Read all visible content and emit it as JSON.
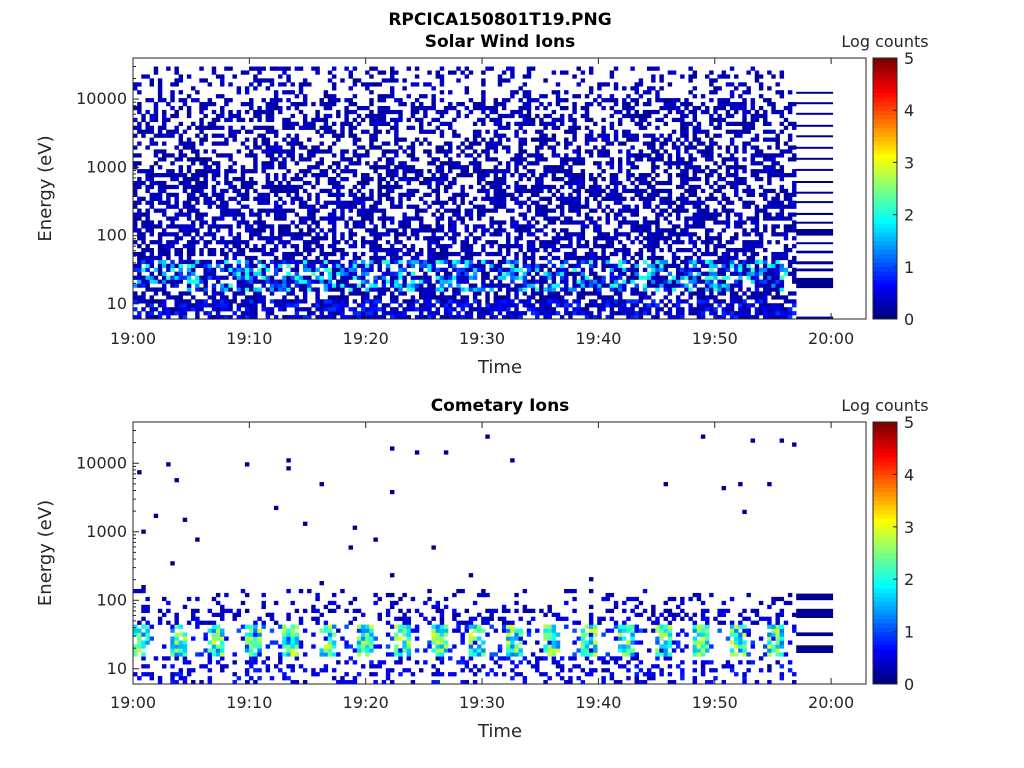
{
  "figure_title": "RPCICA150801T19.PNG",
  "colorbar": {
    "label": "Log counts",
    "ticks": [
      "0",
      "1",
      "2",
      "3",
      "4",
      "5"
    ],
    "colormap": [
      "#00007f",
      "#0000ff",
      "#007fff",
      "#00ffff",
      "#7fff7f",
      "#ffff00",
      "#ff7f00",
      "#ff0000",
      "#7f0000"
    ]
  },
  "chart_data": [
    {
      "type": "heatmap",
      "title": "Solar Wind Ions",
      "xlabel": "Time",
      "ylabel": "Energy (eV)",
      "xticks": [
        "19:00",
        "19:10",
        "19:20",
        "19:30",
        "19:40",
        "19:50",
        "20:00"
      ],
      "xlim": [
        "19:00",
        "20:03"
      ],
      "yticks": [
        "10",
        "100",
        "1000",
        "10000"
      ],
      "ylim": [
        6,
        40000
      ],
      "y_scale": "log",
      "colorbar_range": [
        0,
        5
      ],
      "data_end_time": "19:57",
      "pattern": "dense low-level counts (log ~0-0.5) across 10 eV - 30 keV; moderate counts (log ~1-2) at 20-40 eV"
    },
    {
      "type": "heatmap",
      "title": "Cometary Ions",
      "xlabel": "Time",
      "ylabel": "Energy (eV)",
      "xticks": [
        "19:00",
        "19:10",
        "19:20",
        "19:30",
        "19:40",
        "19:50",
        "20:00"
      ],
      "xlim": [
        "19:00",
        "20:03"
      ],
      "yticks": [
        "10",
        "100",
        "1000",
        "10000"
      ],
      "ylim": [
        6,
        40000
      ],
      "y_scale": "log",
      "colorbar_range": [
        0,
        5
      ],
      "data_end_time": "19:57",
      "pattern": "intermittent bursts at 15-40 eV reaching log ~2.5-3 roughly every 3 minutes; sparse counts below 150 eV; isolated single counts up to 20 keV"
    }
  ]
}
